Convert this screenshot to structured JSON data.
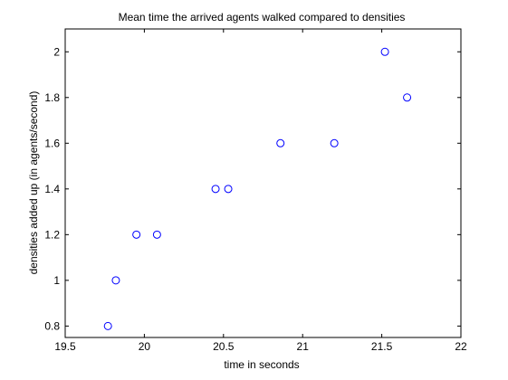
{
  "chart_data": {
    "type": "scatter",
    "title": "Mean time the arrived agents walked compared to densities",
    "xlabel": "time in seconds",
    "ylabel": "densities added up (in agents/second)",
    "xlim": [
      19.5,
      22
    ],
    "ylim": [
      0.75,
      2.1
    ],
    "xticks": [
      19.5,
      20,
      20.5,
      21,
      21.5,
      22
    ],
    "xtick_labels": [
      "19.5",
      "20",
      "20.5",
      "21",
      "21.5",
      "22"
    ],
    "yticks": [
      0.8,
      1.0,
      1.2,
      1.4,
      1.6,
      1.8,
      2.0
    ],
    "ytick_labels": [
      "0.8",
      "1",
      "1.2",
      "1.4",
      "1.6",
      "1.8",
      "2"
    ],
    "grid": false,
    "legend": "none",
    "marker": "circle-open",
    "marker_color": "#0000ff",
    "series": [
      {
        "x": [
          19.77,
          19.82,
          19.95,
          20.08,
          20.45,
          20.53,
          20.86,
          21.2,
          21.52,
          21.66
        ],
        "y": [
          0.8,
          1.0,
          1.2,
          1.2,
          1.4,
          1.4,
          1.6,
          1.6,
          2.0,
          1.8
        ]
      }
    ]
  }
}
